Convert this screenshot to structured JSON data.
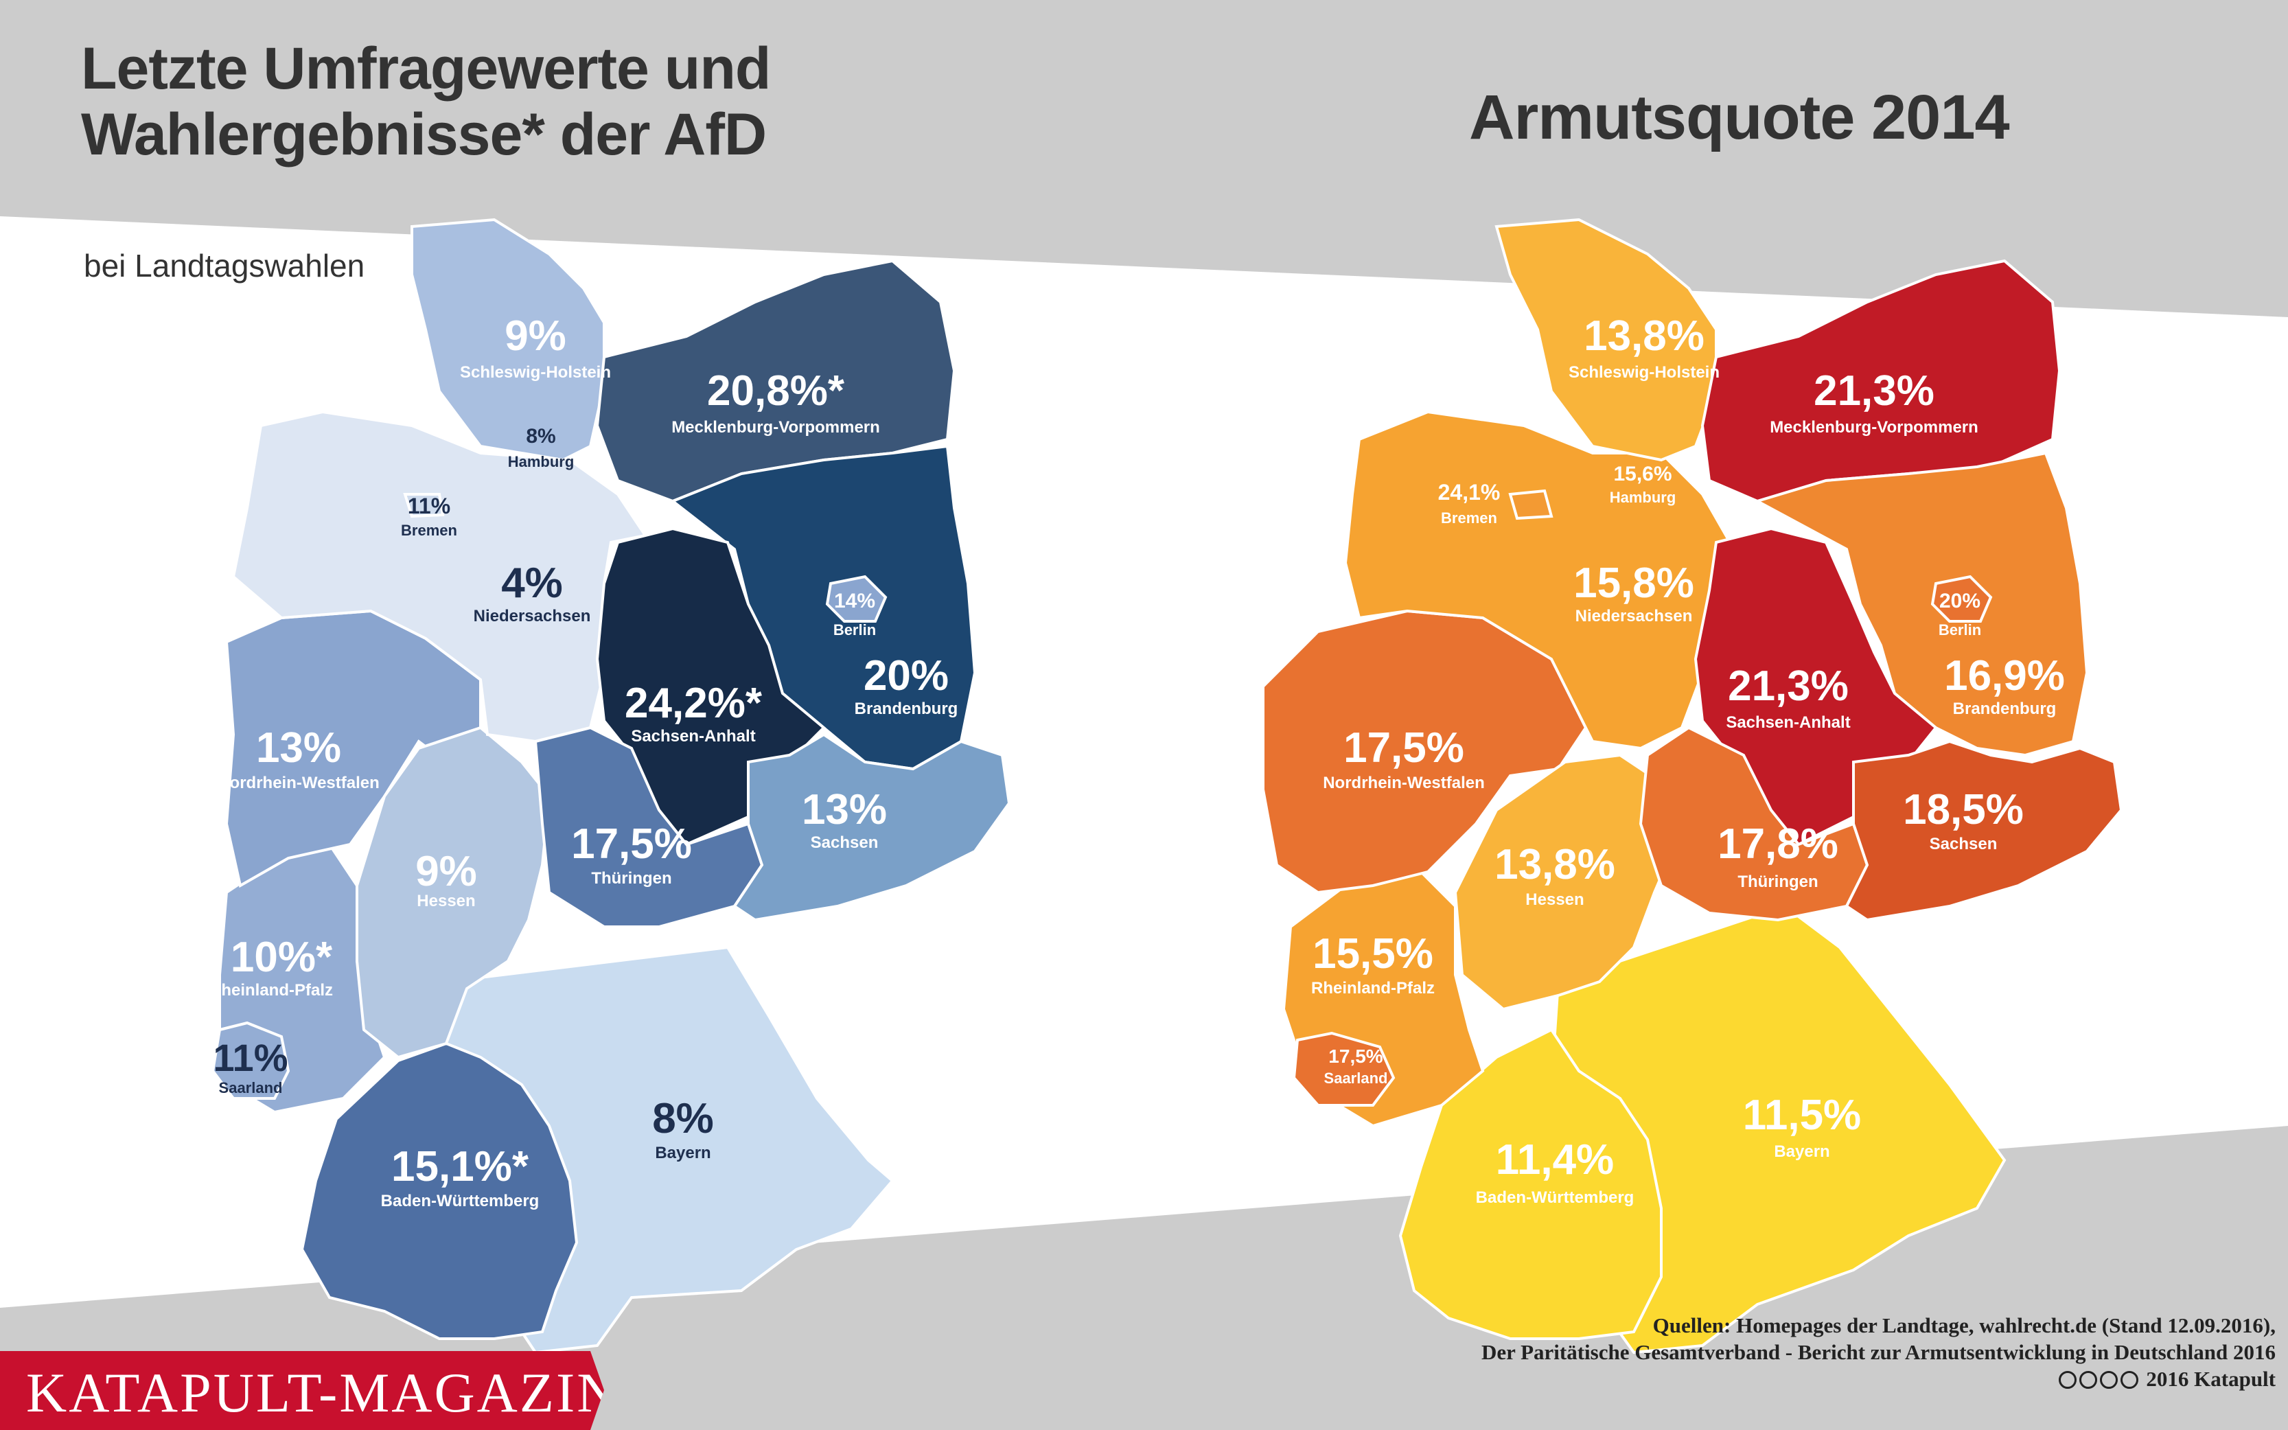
{
  "left_title": [
    "Letzte Umfragewerte und",
    "Wahlergebnisse* der AfD"
  ],
  "left_subtitle": "bei Landtagswahlen",
  "right_title": "Armutsquote 2014",
  "logo": "KATAPULT-MAGAZIN.de",
  "sources": [
    "Quellen: Homepages der Landtage, wahlrecht.de (Stand 12.09.2016),",
    "Der Paritätische Gesamtverband - Bericht zur Armutsentwicklung in Deutschland 2016",
    "2016 Katapult"
  ],
  "license_icons": [
    "cc-icon",
    "by-icon",
    "nc-icon",
    "nd-icon"
  ],
  "colors": {
    "page_band": "#cccccc",
    "logo_bg": "#c8102e",
    "left_scale": [
      "#cfdcee",
      "#a9bfe0",
      "#8aa5cf",
      "#5778aa",
      "#3b5f8f",
      "#1c4670",
      "#162b48"
    ],
    "right_scale": [
      "#fcd930",
      "#f9b43a",
      "#f39a33",
      "#e87230",
      "#d85425",
      "#c11b26"
    ]
  },
  "left_map": {
    "states": [
      {
        "name": "Schleswig-Holstein",
        "value": "9%",
        "color": "#a9bfe0",
        "label_color": "#ffffff"
      },
      {
        "name": "Hamburg",
        "value": "8%",
        "color": "#cfdcee",
        "label_color": "#1e2f4f"
      },
      {
        "name": "Mecklenburg-Vorpommern",
        "value": "20,8%*",
        "color": "#3b5678",
        "label_color": "#ffffff"
      },
      {
        "name": "Bremen",
        "value": "11%",
        "color": "#cfdcee",
        "label_color": "#1e2f4f"
      },
      {
        "name": "Niedersachsen",
        "value": "4%",
        "color": "#dde6f3",
        "label_color": "#1e2f4f"
      },
      {
        "name": "Berlin",
        "value": "14%",
        "color": "#8aa5cf",
        "label_color": "#ffffff"
      },
      {
        "name": "Brandenburg",
        "value": "20%",
        "color": "#1c4670",
        "label_color": "#ffffff"
      },
      {
        "name": "Sachsen-Anhalt",
        "value": "24,2%*",
        "color": "#162b48",
        "label_color": "#ffffff"
      },
      {
        "name": "Nordrhein-Westfalen",
        "value": "13%",
        "color": "#8aa5cf",
        "label_color": "#ffffff"
      },
      {
        "name": "Sachsen",
        "value": "13%",
        "color": "#7aa0c8",
        "label_color": "#ffffff"
      },
      {
        "name": "Hessen",
        "value": "9%",
        "color": "#b3c7e1",
        "label_color": "#ffffff"
      },
      {
        "name": "Thüringen",
        "value": "17,5%",
        "color": "#5778aa",
        "label_color": "#ffffff"
      },
      {
        "name": "Rheinland-Pfalz",
        "value": "10%*",
        "color": "#94add4",
        "label_color": "#ffffff"
      },
      {
        "name": "Saarland",
        "value": "11%",
        "color": "#94add4",
        "label_color": "#1e2f4f"
      },
      {
        "name": "Baden-Württemberg",
        "value": "15,1%*",
        "color": "#4e6fa3",
        "label_color": "#ffffff"
      },
      {
        "name": "Bayern",
        "value": "8%",
        "color": "#c9dcf0",
        "label_color": "#1e2f4f"
      }
    ]
  },
  "right_map": {
    "states": [
      {
        "name": "Schleswig-Holstein",
        "value": "13,8%",
        "color": "#f9b43a",
        "label_color": "#ffffff"
      },
      {
        "name": "Hamburg",
        "value": "15,6%",
        "color": "#f9b43a",
        "label_color": "#ffffff"
      },
      {
        "name": "Mecklenburg-Vorpommern",
        "value": "21,3%",
        "color": "#c11b26",
        "label_color": "#ffffff"
      },
      {
        "name": "Bremen",
        "value": "24,1%",
        "color": "#f39a33",
        "label_color": "#ffffff"
      },
      {
        "name": "Niedersachsen",
        "value": "15,8%",
        "color": "#f6a331",
        "label_color": "#ffffff"
      },
      {
        "name": "Berlin",
        "value": "20%",
        "color": "#e87230",
        "label_color": "#ffffff"
      },
      {
        "name": "Brandenburg",
        "value": "16,9%",
        "color": "#ef8830",
        "label_color": "#ffffff"
      },
      {
        "name": "Sachsen-Anhalt",
        "value": "21,3%",
        "color": "#c11b26",
        "label_color": "#ffffff"
      },
      {
        "name": "Nordrhein-Westfalen",
        "value": "17,5%",
        "color": "#e87230",
        "label_color": "#ffffff"
      },
      {
        "name": "Sachsen",
        "value": "18,5%",
        "color": "#d85425",
        "label_color": "#ffffff"
      },
      {
        "name": "Hessen",
        "value": "13,8%",
        "color": "#f9b43a",
        "label_color": "#ffffff"
      },
      {
        "name": "Thüringen",
        "value": "17,8%",
        "color": "#e87230",
        "label_color": "#ffffff"
      },
      {
        "name": "Rheinland-Pfalz",
        "value": "15,5%",
        "color": "#f6a331",
        "label_color": "#ffffff"
      },
      {
        "name": "Saarland",
        "value": "17,5%",
        "color": "#e87230",
        "label_color": "#ffffff"
      },
      {
        "name": "Baden-Württemberg",
        "value": "11,4%",
        "color": "#fcd930",
        "label_color": "#ffffff"
      },
      {
        "name": "Bayern",
        "value": "11,5%",
        "color": "#fcd930",
        "label_color": "#ffffff"
      }
    ]
  }
}
